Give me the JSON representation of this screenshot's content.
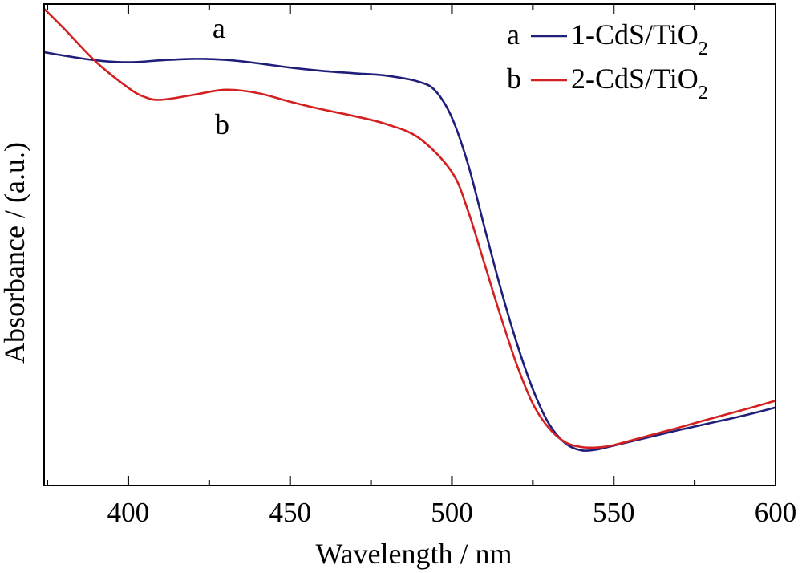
{
  "chart_data": {
    "type": "line",
    "title": "",
    "xlabel": "Wavelength / nm",
    "ylabel": "Absorbance / (a.u.)",
    "xlim": [
      374,
      600
    ],
    "ylim": [
      0,
      1
    ],
    "x_ticks": [
      400,
      450,
      500,
      550,
      600
    ],
    "x_tick_labels": [
      "400",
      "450",
      "500",
      "550",
      "600"
    ],
    "y_tick_labels": [],
    "grid": false,
    "legend_position": "top-right",
    "series": [
      {
        "name": "1-CdS/TiO2",
        "legend_prefix": "a",
        "legend_main": "1-CdS/TiO",
        "legend_sub": "2",
        "curve_label": "a",
        "color": "#1f1f7a",
        "x": [
          374,
          380,
          390,
          400,
          410,
          420,
          430,
          440,
          450,
          460,
          470,
          480,
          490,
          495,
          500,
          505,
          510,
          515,
          520,
          525,
          530,
          535,
          540,
          545,
          550,
          560,
          570,
          580,
          590,
          600
        ],
        "y": [
          0.9,
          0.893,
          0.883,
          0.879,
          0.883,
          0.886,
          0.884,
          0.877,
          0.868,
          0.861,
          0.856,
          0.851,
          0.838,
          0.819,
          0.764,
          0.667,
          0.538,
          0.411,
          0.297,
          0.2,
          0.128,
          0.088,
          0.073,
          0.075,
          0.083,
          0.099,
          0.115,
          0.13,
          0.145,
          0.162
        ]
      },
      {
        "name": "2-CdS/TiO2",
        "legend_prefix": "b",
        "legend_main": "2-CdS/TiO",
        "legend_sub": "2",
        "curve_label": "b",
        "color": "#d42020",
        "x": [
          374,
          380,
          390,
          400,
          405,
          410,
          420,
          430,
          440,
          450,
          460,
          470,
          480,
          490,
          500,
          505,
          510,
          515,
          520,
          525,
          530,
          535,
          540,
          545,
          550,
          560,
          570,
          580,
          590,
          600
        ],
        "y": [
          0.99,
          0.95,
          0.88,
          0.826,
          0.807,
          0.801,
          0.811,
          0.822,
          0.815,
          0.797,
          0.781,
          0.767,
          0.75,
          0.721,
          0.651,
          0.57,
          0.462,
          0.353,
          0.252,
          0.17,
          0.119,
          0.09,
          0.08,
          0.079,
          0.084,
          0.102,
          0.12,
          0.139,
          0.157,
          0.176
        ]
      }
    ],
    "annotations": [
      {
        "text": "a",
        "x": 428,
        "y": 0.93
      },
      {
        "text": "b",
        "x": 429,
        "y": 0.73
      }
    ]
  }
}
